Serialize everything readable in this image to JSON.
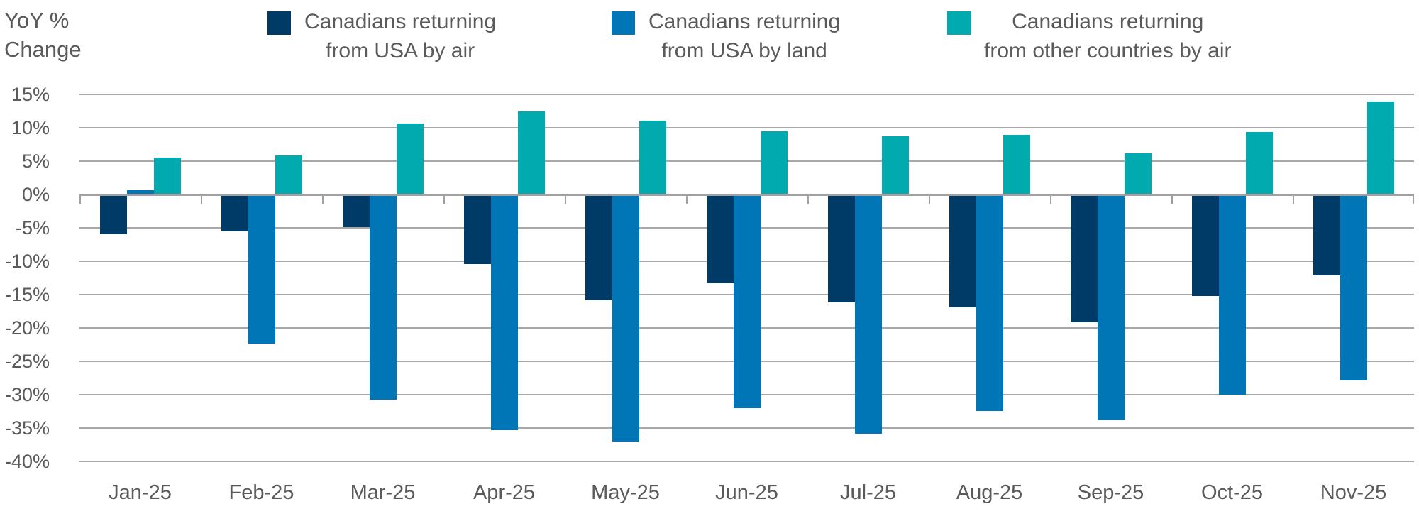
{
  "header": {
    "title_line1": "YoY %",
    "title_line2": "Change"
  },
  "legend": {
    "items": [
      {
        "line1": "Canadians returning",
        "line2": "from USA by air",
        "color": "#003a66"
      },
      {
        "line1": "Canadians returning",
        "line2": "from USA by land",
        "color": "#0076b6"
      },
      {
        "line1": "Canadians returning",
        "line2": "from other countries by air",
        "color": "#00aaae"
      }
    ]
  },
  "chart_data": {
    "type": "bar",
    "title": "YoY % Change",
    "categories": [
      "Jan-25",
      "Feb-25",
      "Mar-25",
      "Apr-25",
      "May-25",
      "Jun-25",
      "Jul-25",
      "Aug-25",
      "Sep-25",
      "Oct-25",
      "Nov-25"
    ],
    "series": [
      {
        "key": "usa-air",
        "name": "Canadians returning from USA by air",
        "color": "#003a66",
        "values": [
          -6.0,
          -5.5,
          -4.9,
          -10.4,
          -15.8,
          -13.3,
          -16.2,
          -16.9,
          -19.2,
          -15.2,
          -12.1
        ]
      },
      {
        "key": "usa-land",
        "name": "Canadians returning from USA by land",
        "color": "#0076b6",
        "values": [
          0.6,
          -22.3,
          -30.7,
          -35.3,
          -37.0,
          -32.0,
          -35.9,
          -32.4,
          -33.8,
          -30.0,
          -27.9
        ]
      },
      {
        "key": "other-air",
        "name": "Canadians returning from other countries by air",
        "color": "#00aaae",
        "values": [
          5.5,
          5.8,
          10.6,
          12.5,
          11.1,
          9.5,
          8.7,
          8.9,
          6.2,
          9.4,
          13.9
        ]
      }
    ],
    "ylabel": "YoY % Change",
    "xlabel": "",
    "ylim": [
      -40,
      15
    ],
    "ytick_step": 5,
    "y_tick_labels": [
      "15%",
      "10%",
      "5%",
      "0%",
      "-5%",
      "-10%",
      "-15%",
      "-20%",
      "-25%",
      "-30%",
      "-35%",
      "-40%"
    ],
    "grid": true,
    "legend_position": "top"
  }
}
